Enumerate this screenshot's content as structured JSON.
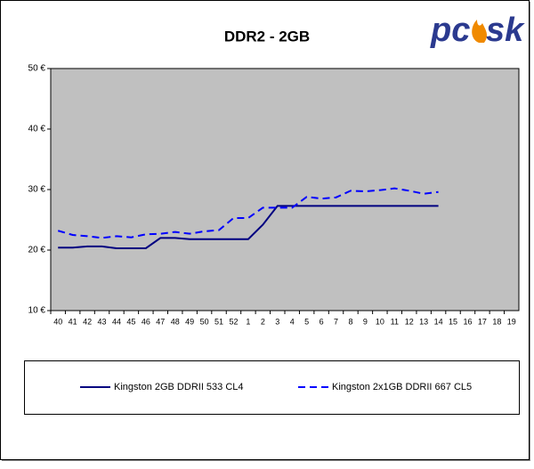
{
  "logo": {
    "left": "pc",
    "right": "sk"
  },
  "chart_data": {
    "type": "line",
    "title": "DDR2 - 2GB",
    "categories": [
      "40",
      "41",
      "42",
      "43",
      "44",
      "45",
      "46",
      "47",
      "48",
      "49",
      "50",
      "51",
      "52",
      "1",
      "2",
      "3",
      "4",
      "5",
      "6",
      "7",
      "8",
      "9",
      "10",
      "11",
      "12",
      "13",
      "14",
      "15",
      "16",
      "17",
      "18",
      "19"
    ],
    "series": [
      {
        "name": "Kingston 2GB DDRII 533 CL4",
        "color": "#000080",
        "dash": "solid",
        "values": [
          20.4,
          20.4,
          20.6,
          20.6,
          20.3,
          20.3,
          20.3,
          22.0,
          22.0,
          21.8,
          21.8,
          21.8,
          21.8,
          21.8,
          24.2,
          27.3,
          27.3,
          27.3,
          27.3,
          27.3,
          27.3,
          27.3,
          27.3,
          27.3,
          27.3,
          27.3,
          27.3,
          null,
          null,
          null,
          null,
          null
        ]
      },
      {
        "name": "Kingston 2x1GB DDRII 667 CL5",
        "color": "#0000ff",
        "dash": "dashed",
        "values": [
          23.2,
          22.5,
          22.3,
          22.0,
          22.3,
          22.1,
          22.6,
          22.7,
          23.0,
          22.7,
          23.1,
          23.3,
          25.3,
          25.3,
          27.0,
          27.0,
          27.0,
          28.8,
          28.5,
          28.7,
          29.8,
          29.7,
          29.9,
          30.2,
          29.8,
          29.3,
          29.6,
          null,
          null,
          null,
          null,
          null
        ]
      }
    ],
    "ylim": [
      10,
      50
    ],
    "yticks": [
      {
        "value": 10,
        "label": "10 €"
      },
      {
        "value": 20,
        "label": "20 €"
      },
      {
        "value": 30,
        "label": "30 €"
      },
      {
        "value": 40,
        "label": "40 €"
      },
      {
        "value": 50,
        "label": "50 €"
      }
    ],
    "grid": false,
    "plot_background": "#c0c0c0",
    "legend": "bottom"
  }
}
